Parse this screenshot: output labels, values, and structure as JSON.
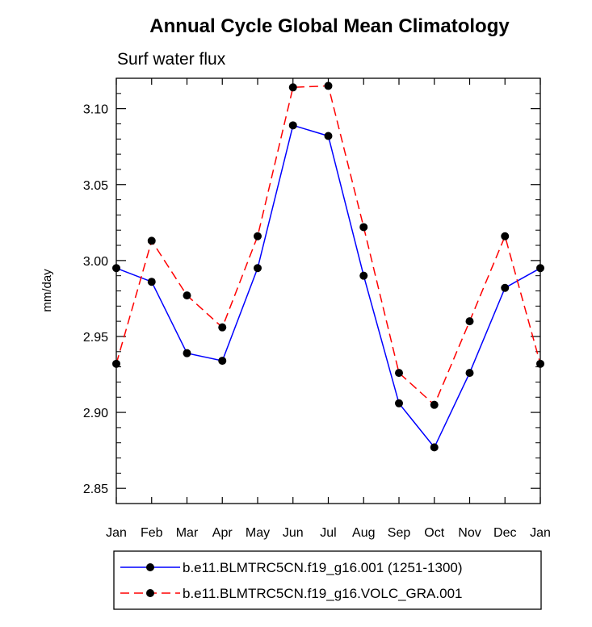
{
  "chart_data": {
    "type": "line",
    "title": "Annual Cycle Global Mean Climatology",
    "subtitle": "Surf water flux",
    "xlabel": "",
    "ylabel": "mm/day",
    "categories": [
      "Jan",
      "Feb",
      "Mar",
      "Apr",
      "May",
      "Jun",
      "Jul",
      "Aug",
      "Sep",
      "Oct",
      "Nov",
      "Dec",
      "Jan"
    ],
    "ylim": [
      2.84,
      3.12
    ],
    "yticks": [
      "2.85",
      "2.90",
      "2.95",
      "3.00",
      "3.05",
      "3.10"
    ],
    "grid": false,
    "legend_position": "bottom",
    "series": [
      {
        "name": "b.e11.BLMTRC5CN.f19_g16.001 (1251-1300)",
        "color": "#0000ff",
        "dash": "solid",
        "values": [
          2.995,
          2.986,
          2.939,
          2.934,
          2.995,
          3.089,
          3.082,
          2.99,
          2.906,
          2.877,
          2.926,
          2.982,
          2.995
        ]
      },
      {
        "name": "b.e11.BLMTRC5CN.f19_g16.VOLC_GRA.001",
        "color": "#ff0000",
        "dash": "dashed",
        "values": [
          2.932,
          3.013,
          2.977,
          2.956,
          3.016,
          3.114,
          3.115,
          3.022,
          2.926,
          2.905,
          2.96,
          3.016,
          2.932
        ]
      }
    ]
  }
}
